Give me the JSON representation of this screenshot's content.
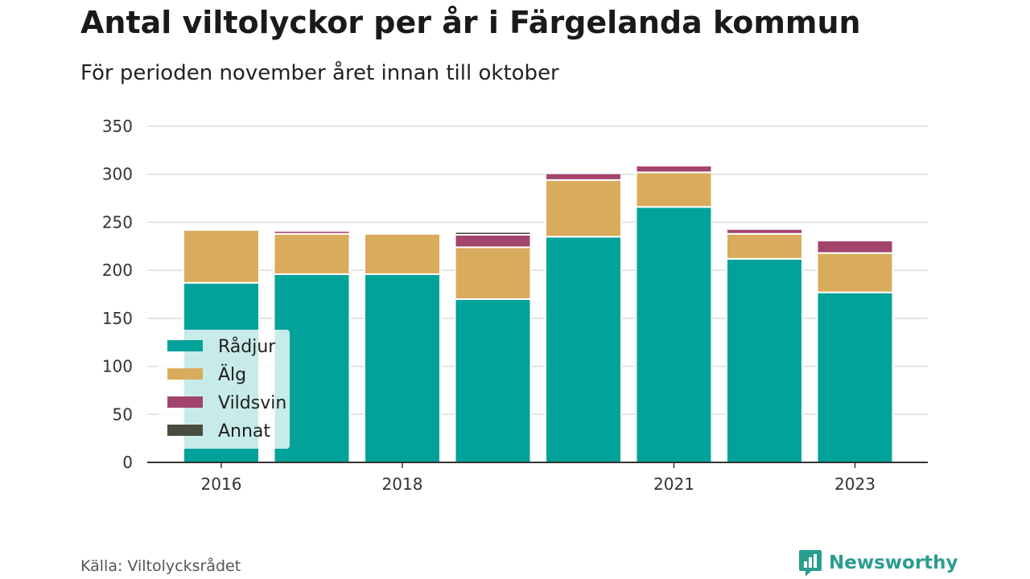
{
  "header": {
    "title": "Antal viltolyckor per år i Färgelanda kommun",
    "subtitle": "För perioden november året innan till oktober"
  },
  "footer": {
    "source": "Källa: Viltolycksrådet",
    "brand": "Newsworthy"
  },
  "colors": {
    "Rådjur": "#00a29a",
    "Älg": "#d9ab5c",
    "Vildsvin": "#a3446d",
    "Annat": "#4a4c40",
    "brand": "#2a9d8f"
  },
  "chart_data": {
    "type": "bar",
    "stacked": true,
    "categories": [
      "2016",
      "2017",
      "2018",
      "2019",
      "2020",
      "2021",
      "2022",
      "2023"
    ],
    "x_tick_labels": [
      "2016",
      "2018",
      "2021",
      "2023"
    ],
    "series": [
      {
        "name": "Rådjur",
        "values": [
          187,
          196,
          196,
          170,
          235,
          266,
          212,
          177
        ]
      },
      {
        "name": "Älg",
        "values": [
          55,
          42,
          42,
          54,
          59,
          36,
          26,
          41
        ]
      },
      {
        "name": "Vildsvin",
        "values": [
          0,
          3,
          0,
          13,
          7,
          7,
          5,
          13
        ]
      },
      {
        "name": "Annat",
        "values": [
          0,
          0,
          0,
          3,
          0,
          0,
          0,
          0
        ]
      }
    ],
    "y_ticks": [
      0,
      50,
      100,
      150,
      200,
      250,
      300,
      350
    ],
    "ylim": [
      0,
      350
    ],
    "grid": true,
    "legend_position": "bottom-left"
  }
}
